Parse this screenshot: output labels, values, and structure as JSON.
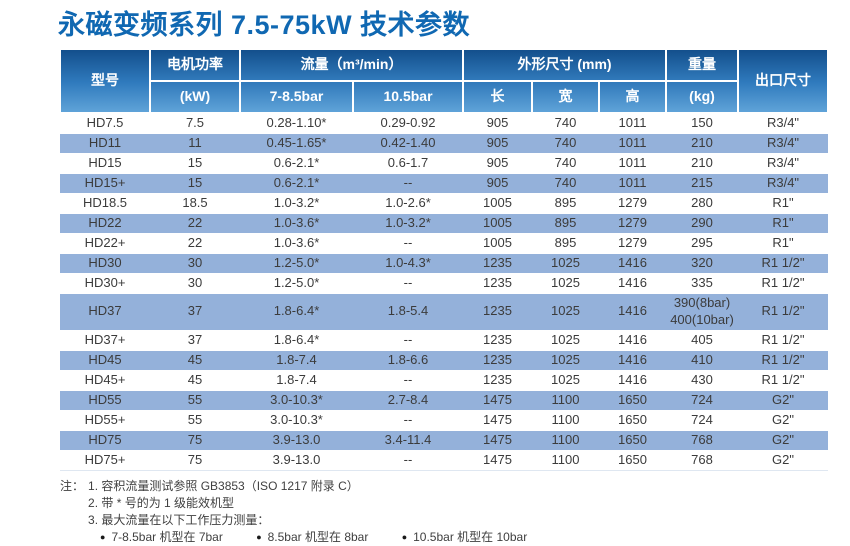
{
  "page": {
    "title": "永磁变频系列 7.5-75kW 技术参数"
  },
  "colors": {
    "title_blue": "#1068b2",
    "header_gradient_top": "#134f8c",
    "header_gradient_mid": "#2f7abd",
    "header_gradient_bottom": "#5fa3d8",
    "row_alt_blue": "#94b1da",
    "body_text": "#3b3b3b"
  },
  "table": {
    "header": {
      "model": "型号",
      "motor_power": "电机功率",
      "motor_power_unit": "(kW)",
      "flow": "流量（m³/min）",
      "flow_sub_1": "7-8.5bar",
      "flow_sub_2": "10.5bar",
      "dimensions": "外形尺寸 (mm)",
      "dim_length": "长",
      "dim_width": "宽",
      "dim_height": "高",
      "weight": "重量",
      "weight_unit": "(kg)",
      "outlet": "出口尺寸"
    },
    "rows": [
      {
        "cells": [
          "HD7.5",
          "7.5",
          "0.28-1.10*",
          "0.29-0.92",
          "905",
          "740",
          "1011",
          "150",
          "R3/4\""
        ]
      },
      {
        "cells": [
          "HD11",
          "11",
          "0.45-1.65*",
          "0.42-1.40",
          "905",
          "740",
          "1011",
          "210",
          "R3/4\""
        ]
      },
      {
        "cells": [
          "HD15",
          "15",
          "0.6-2.1*",
          "0.6-1.7",
          "905",
          "740",
          "1011",
          "210",
          "R3/4\""
        ]
      },
      {
        "cells": [
          "HD15+",
          "15",
          "0.6-2.1*",
          "--",
          "905",
          "740",
          "1011",
          "215",
          "R3/4\""
        ]
      },
      {
        "cells": [
          "HD18.5",
          "18.5",
          "1.0-3.2*",
          "1.0-2.6*",
          "1005",
          "895",
          "1279",
          "280",
          "R1\""
        ]
      },
      {
        "cells": [
          "HD22",
          "22",
          "1.0-3.6*",
          "1.0-3.2*",
          "1005",
          "895",
          "1279",
          "290",
          "R1\""
        ]
      },
      {
        "cells": [
          "HD22+",
          "22",
          "1.0-3.6*",
          "--",
          "1005",
          "895",
          "1279",
          "295",
          "R1\""
        ]
      },
      {
        "cells": [
          "HD30",
          "30",
          "1.2-5.0*",
          "1.0-4.3*",
          "1235",
          "1025",
          "1416",
          "320",
          "R1 1/2\""
        ]
      },
      {
        "cells": [
          "HD30+",
          "30",
          "1.2-5.0*",
          "--",
          "1235",
          "1025",
          "1416",
          "335",
          "R1 1/2\""
        ]
      },
      {
        "cells": [
          "HD37",
          "37",
          "1.8-6.4*",
          "1.8-5.4",
          "1235",
          "1025",
          "1416",
          "390(8bar)\n400(10bar)",
          "R1 1/2\""
        ]
      },
      {
        "cells": [
          "HD37+",
          "37",
          "1.8-6.4*",
          "--",
          "1235",
          "1025",
          "1416",
          "405",
          "R1 1/2\""
        ]
      },
      {
        "cells": [
          "HD45",
          "45",
          "1.8-7.4",
          "1.8-6.6",
          "1235",
          "1025",
          "1416",
          "410",
          "R1 1/2\""
        ]
      },
      {
        "cells": [
          "HD45+",
          "45",
          "1.8-7.4",
          "--",
          "1235",
          "1025",
          "1416",
          "430",
          "R1 1/2\""
        ]
      },
      {
        "cells": [
          "HD55",
          "55",
          "3.0-10.3*",
          "2.7-8.4",
          "1475",
          "1100",
          "1650",
          "724",
          "G2\""
        ]
      },
      {
        "cells": [
          "HD55+",
          "55",
          "3.0-10.3*",
          "--",
          "1475",
          "1100",
          "1650",
          "724",
          "G2\""
        ]
      },
      {
        "cells": [
          "HD75",
          "75",
          "3.9-13.0",
          "3.4-11.4",
          "1475",
          "1100",
          "1650",
          "768",
          "G2\""
        ]
      },
      {
        "cells": [
          "HD75+",
          "75",
          "3.9-13.0",
          "--",
          "1475",
          "1100",
          "1650",
          "768",
          "G2\""
        ]
      }
    ]
  },
  "notes": {
    "prefix": "注：",
    "items": [
      "1. 容积流量测试参照 GB3853（ISO 1217 附录 C）",
      "2. 带 * 号的为 1 级能效机型",
      "3. 最大流量在以下工作压力测量："
    ],
    "bullet_icon": "●",
    "bullets": [
      "7-8.5bar 机型在 7bar",
      "8.5bar 机型在 8bar",
      "10.5bar 机型在 10bar"
    ]
  }
}
